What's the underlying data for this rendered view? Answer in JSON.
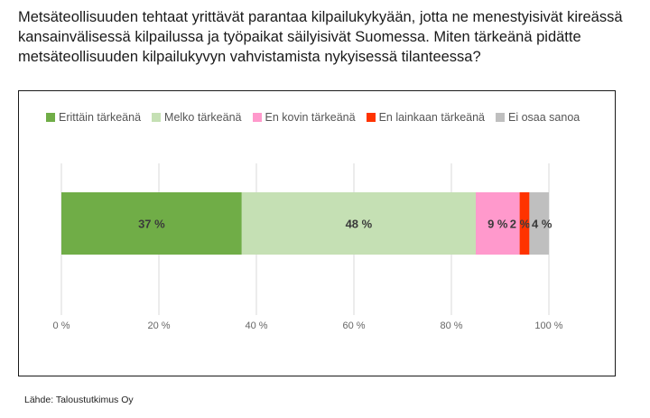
{
  "question": "Metsäteollisuuden tehtaat yrittävät parantaa kilpailukykyään, jotta ne menestyisivät kireässä kansainvälisessä kilpailussa ja työpaikat säilyisivät Suomessa. Miten tärkeänä pidätte metsäteollisuuden kilpailukyvyn vahvistamista nykyisessä tilanteessa?",
  "source": "Lähde: Taloustutkimus Oy",
  "chart_data": {
    "type": "bar",
    "orientation": "horizontal",
    "stacked": true,
    "categories": [
      ""
    ],
    "series": [
      {
        "name": "Erittäin tärkeänä",
        "values": [
          37
        ],
        "label": "37 %",
        "color": "#70ad47"
      },
      {
        "name": "Melko tärkeänä",
        "values": [
          48
        ],
        "label": "48 %",
        "color": "#c5e0b4"
      },
      {
        "name": "En kovin tärkeänä",
        "values": [
          9
        ],
        "label": "9 %",
        "color": "#ff99cc"
      },
      {
        "name": "En lainkaan tärkeänä",
        "values": [
          2
        ],
        "label": "2 %",
        "color": "#ff3300"
      },
      {
        "name": "Ei osaa sanoa",
        "values": [
          4
        ],
        "label": "4 %",
        "color": "#bfbfbf"
      }
    ],
    "xlim": [
      0,
      100
    ],
    "xticks": [
      "0 %",
      "20 %",
      "40 %",
      "60 %",
      "80 %",
      "100 %"
    ],
    "grid": true,
    "legend_position": "top"
  }
}
